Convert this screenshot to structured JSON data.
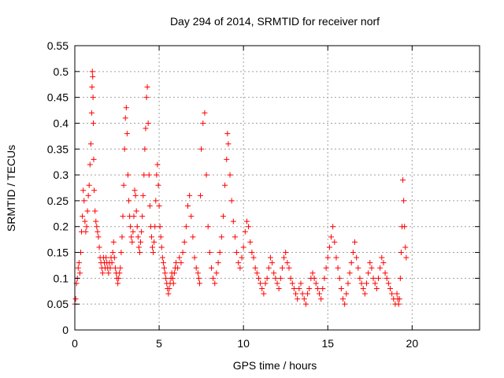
{
  "chart_data": {
    "type": "scatter",
    "title": "Day 294 of 2014, SRMTID for receiver norf",
    "xlabel": "GPS time / hours",
    "ylabel": "SRMTID / TECUs",
    "xlim": [
      0,
      24
    ],
    "ylim": [
      0,
      0.55
    ],
    "xticks": [
      0,
      5,
      10,
      15,
      20
    ],
    "yticks": [
      0,
      0.05,
      0.1,
      0.15,
      0.2,
      0.25,
      0.3,
      0.35,
      0.4,
      0.45,
      0.5,
      0.55
    ],
    "grid": true,
    "legend": "none",
    "marker": "plus",
    "color": "#ff0000",
    "series": [
      {
        "x": [
          0.0,
          0.05,
          0.1,
          0.15,
          0.2,
          0.25,
          0.3,
          0.35,
          0.4,
          0.45,
          0.5,
          0.55,
          0.6,
          0.65,
          0.7,
          0.75,
          0.8,
          0.85,
          0.9,
          0.95,
          1.0,
          1.02,
          1.04,
          1.06,
          1.08,
          1.1,
          1.12,
          1.15,
          1.2,
          1.25,
          1.3,
          1.35,
          1.4,
          1.45,
          1.5,
          1.55,
          1.6,
          1.65,
          1.7,
          1.75,
          1.8,
          1.85,
          1.9,
          1.95,
          2.0,
          2.05,
          2.1,
          2.15,
          2.2,
          2.25,
          2.3,
          2.35,
          2.4,
          2.45,
          2.5,
          2.55,
          2.6,
          2.65,
          2.7,
          2.75,
          2.8,
          2.85,
          2.9,
          2.95,
          3.0,
          3.05,
          3.1,
          3.15,
          3.2,
          3.25,
          3.3,
          3.35,
          3.4,
          3.45,
          3.5,
          3.55,
          3.6,
          3.65,
          3.7,
          3.75,
          3.8,
          3.85,
          3.9,
          3.95,
          4.0,
          4.05,
          4.1,
          4.15,
          4.2,
          4.25,
          4.3,
          4.35,
          4.4,
          4.45,
          4.5,
          4.55,
          4.6,
          4.65,
          4.7,
          4.75,
          4.8,
          4.85,
          4.9,
          4.95,
          5.0,
          5.05,
          5.1,
          5.15,
          5.2,
          5.25,
          5.3,
          5.35,
          5.4,
          5.45,
          5.5,
          5.55,
          5.6,
          5.65,
          5.7,
          5.75,
          5.8,
          5.85,
          5.9,
          5.95,
          6.0,
          6.1,
          6.2,
          6.3,
          6.4,
          6.5,
          6.6,
          6.7,
          6.8,
          6.9,
          7.0,
          7.1,
          7.2,
          7.3,
          7.35,
          7.4,
          7.45,
          7.5,
          7.6,
          7.7,
          7.8,
          7.9,
          8.0,
          8.1,
          8.2,
          8.3,
          8.4,
          8.5,
          8.6,
          8.7,
          8.8,
          8.9,
          9.0,
          9.05,
          9.1,
          9.2,
          9.3,
          9.4,
          9.5,
          9.6,
          9.7,
          9.8,
          9.9,
          10.0,
          10.1,
          10.2,
          10.3,
          10.4,
          10.5,
          10.6,
          10.7,
          10.8,
          10.9,
          11.0,
          11.1,
          11.2,
          11.3,
          11.4,
          11.5,
          11.6,
          11.7,
          11.8,
          11.9,
          12.0,
          12.1,
          12.2,
          12.3,
          12.4,
          12.5,
          12.6,
          12.7,
          12.8,
          12.9,
          13.0,
          13.1,
          13.2,
          13.3,
          13.4,
          13.5,
          13.6,
          13.7,
          13.8,
          13.9,
          14.0,
          14.1,
          14.2,
          14.3,
          14.4,
          14.5,
          14.6,
          14.7,
          14.8,
          14.9,
          15.0,
          15.1,
          15.2,
          15.3,
          15.4,
          15.5,
          15.6,
          15.7,
          15.8,
          15.9,
          16.0,
          16.1,
          16.2,
          16.3,
          16.4,
          16.5,
          16.6,
          16.7,
          16.8,
          16.9,
          17.0,
          17.1,
          17.2,
          17.3,
          17.4,
          17.5,
          17.6,
          17.7,
          17.8,
          17.9,
          18.0,
          18.1,
          18.2,
          18.3,
          18.4,
          18.5,
          18.6,
          18.7,
          18.8,
          18.9,
          19.0,
          19.1,
          19.15,
          19.2,
          19.25,
          19.3,
          19.35,
          19.4,
          19.45,
          19.5,
          19.55,
          19.6,
          19.65
        ],
        "y": [
          0.05,
          0.06,
          0.09,
          0.1,
          0.12,
          0.13,
          0.11,
          0.15,
          0.19,
          0.22,
          0.27,
          0.25,
          0.21,
          0.19,
          0.2,
          0.23,
          0.26,
          0.28,
          0.32,
          0.36,
          0.42,
          0.47,
          0.5,
          0.49,
          0.45,
          0.4,
          0.33,
          0.27,
          0.23,
          0.21,
          0.2,
          0.19,
          0.18,
          0.16,
          0.14,
          0.13,
          0.12,
          0.11,
          0.14,
          0.13,
          0.12,
          0.14,
          0.13,
          0.12,
          0.11,
          0.13,
          0.12,
          0.14,
          0.13,
          0.15,
          0.17,
          0.14,
          0.12,
          0.11,
          0.1,
          0.09,
          0.1,
          0.11,
          0.12,
          0.15,
          0.18,
          0.22,
          0.28,
          0.35,
          0.41,
          0.43,
          0.38,
          0.3,
          0.25,
          0.22,
          0.2,
          0.18,
          0.17,
          0.19,
          0.22,
          0.27,
          0.26,
          0.23,
          0.2,
          0.18,
          0.16,
          0.15,
          0.17,
          0.19,
          0.22,
          0.26,
          0.3,
          0.35,
          0.39,
          0.45,
          0.47,
          0.4,
          0.3,
          0.24,
          0.2,
          0.18,
          0.16,
          0.15,
          0.17,
          0.2,
          0.25,
          0.3,
          0.32,
          0.28,
          0.24,
          0.2,
          0.18,
          0.16,
          0.14,
          0.13,
          0.12,
          0.11,
          0.1,
          0.09,
          0.08,
          0.07,
          0.08,
          0.09,
          0.1,
          0.11,
          0.1,
          0.09,
          0.11,
          0.12,
          0.13,
          0.12,
          0.14,
          0.13,
          0.15,
          0.17,
          0.2,
          0.24,
          0.26,
          0.22,
          0.18,
          0.14,
          0.12,
          0.11,
          0.1,
          0.09,
          0.26,
          0.35,
          0.4,
          0.42,
          0.3,
          0.2,
          0.15,
          0.12,
          0.1,
          0.09,
          0.11,
          0.13,
          0.15,
          0.18,
          0.22,
          0.28,
          0.33,
          0.38,
          0.36,
          0.3,
          0.25,
          0.21,
          0.18,
          0.15,
          0.13,
          0.12,
          0.14,
          0.16,
          0.19,
          0.21,
          0.2,
          0.17,
          0.15,
          0.14,
          0.12,
          0.11,
          0.1,
          0.09,
          0.08,
          0.07,
          0.09,
          0.1,
          0.12,
          0.14,
          0.13,
          0.11,
          0.1,
          0.09,
          0.08,
          0.1,
          0.12,
          0.14,
          0.15,
          0.13,
          0.12,
          0.1,
          0.09,
          0.08,
          0.07,
          0.06,
          0.08,
          0.09,
          0.07,
          0.06,
          0.05,
          0.07,
          0.08,
          0.1,
          0.11,
          0.1,
          0.09,
          0.08,
          0.07,
          0.06,
          0.08,
          0.1,
          0.12,
          0.14,
          0.16,
          0.18,
          0.2,
          0.17,
          0.14,
          0.12,
          0.1,
          0.08,
          0.06,
          0.05,
          0.07,
          0.09,
          0.11,
          0.13,
          0.15,
          0.17,
          0.14,
          0.12,
          0.1,
          0.09,
          0.08,
          0.07,
          0.09,
          0.11,
          0.13,
          0.12,
          0.1,
          0.09,
          0.08,
          0.1,
          0.12,
          0.14,
          0.13,
          0.11,
          0.1,
          0.09,
          0.08,
          0.07,
          0.06,
          0.05,
          0.07,
          0.06,
          0.05,
          0.06,
          0.1,
          0.15,
          0.2,
          0.29,
          0.25,
          0.2,
          0.16,
          0.14
        ]
      }
    ]
  }
}
